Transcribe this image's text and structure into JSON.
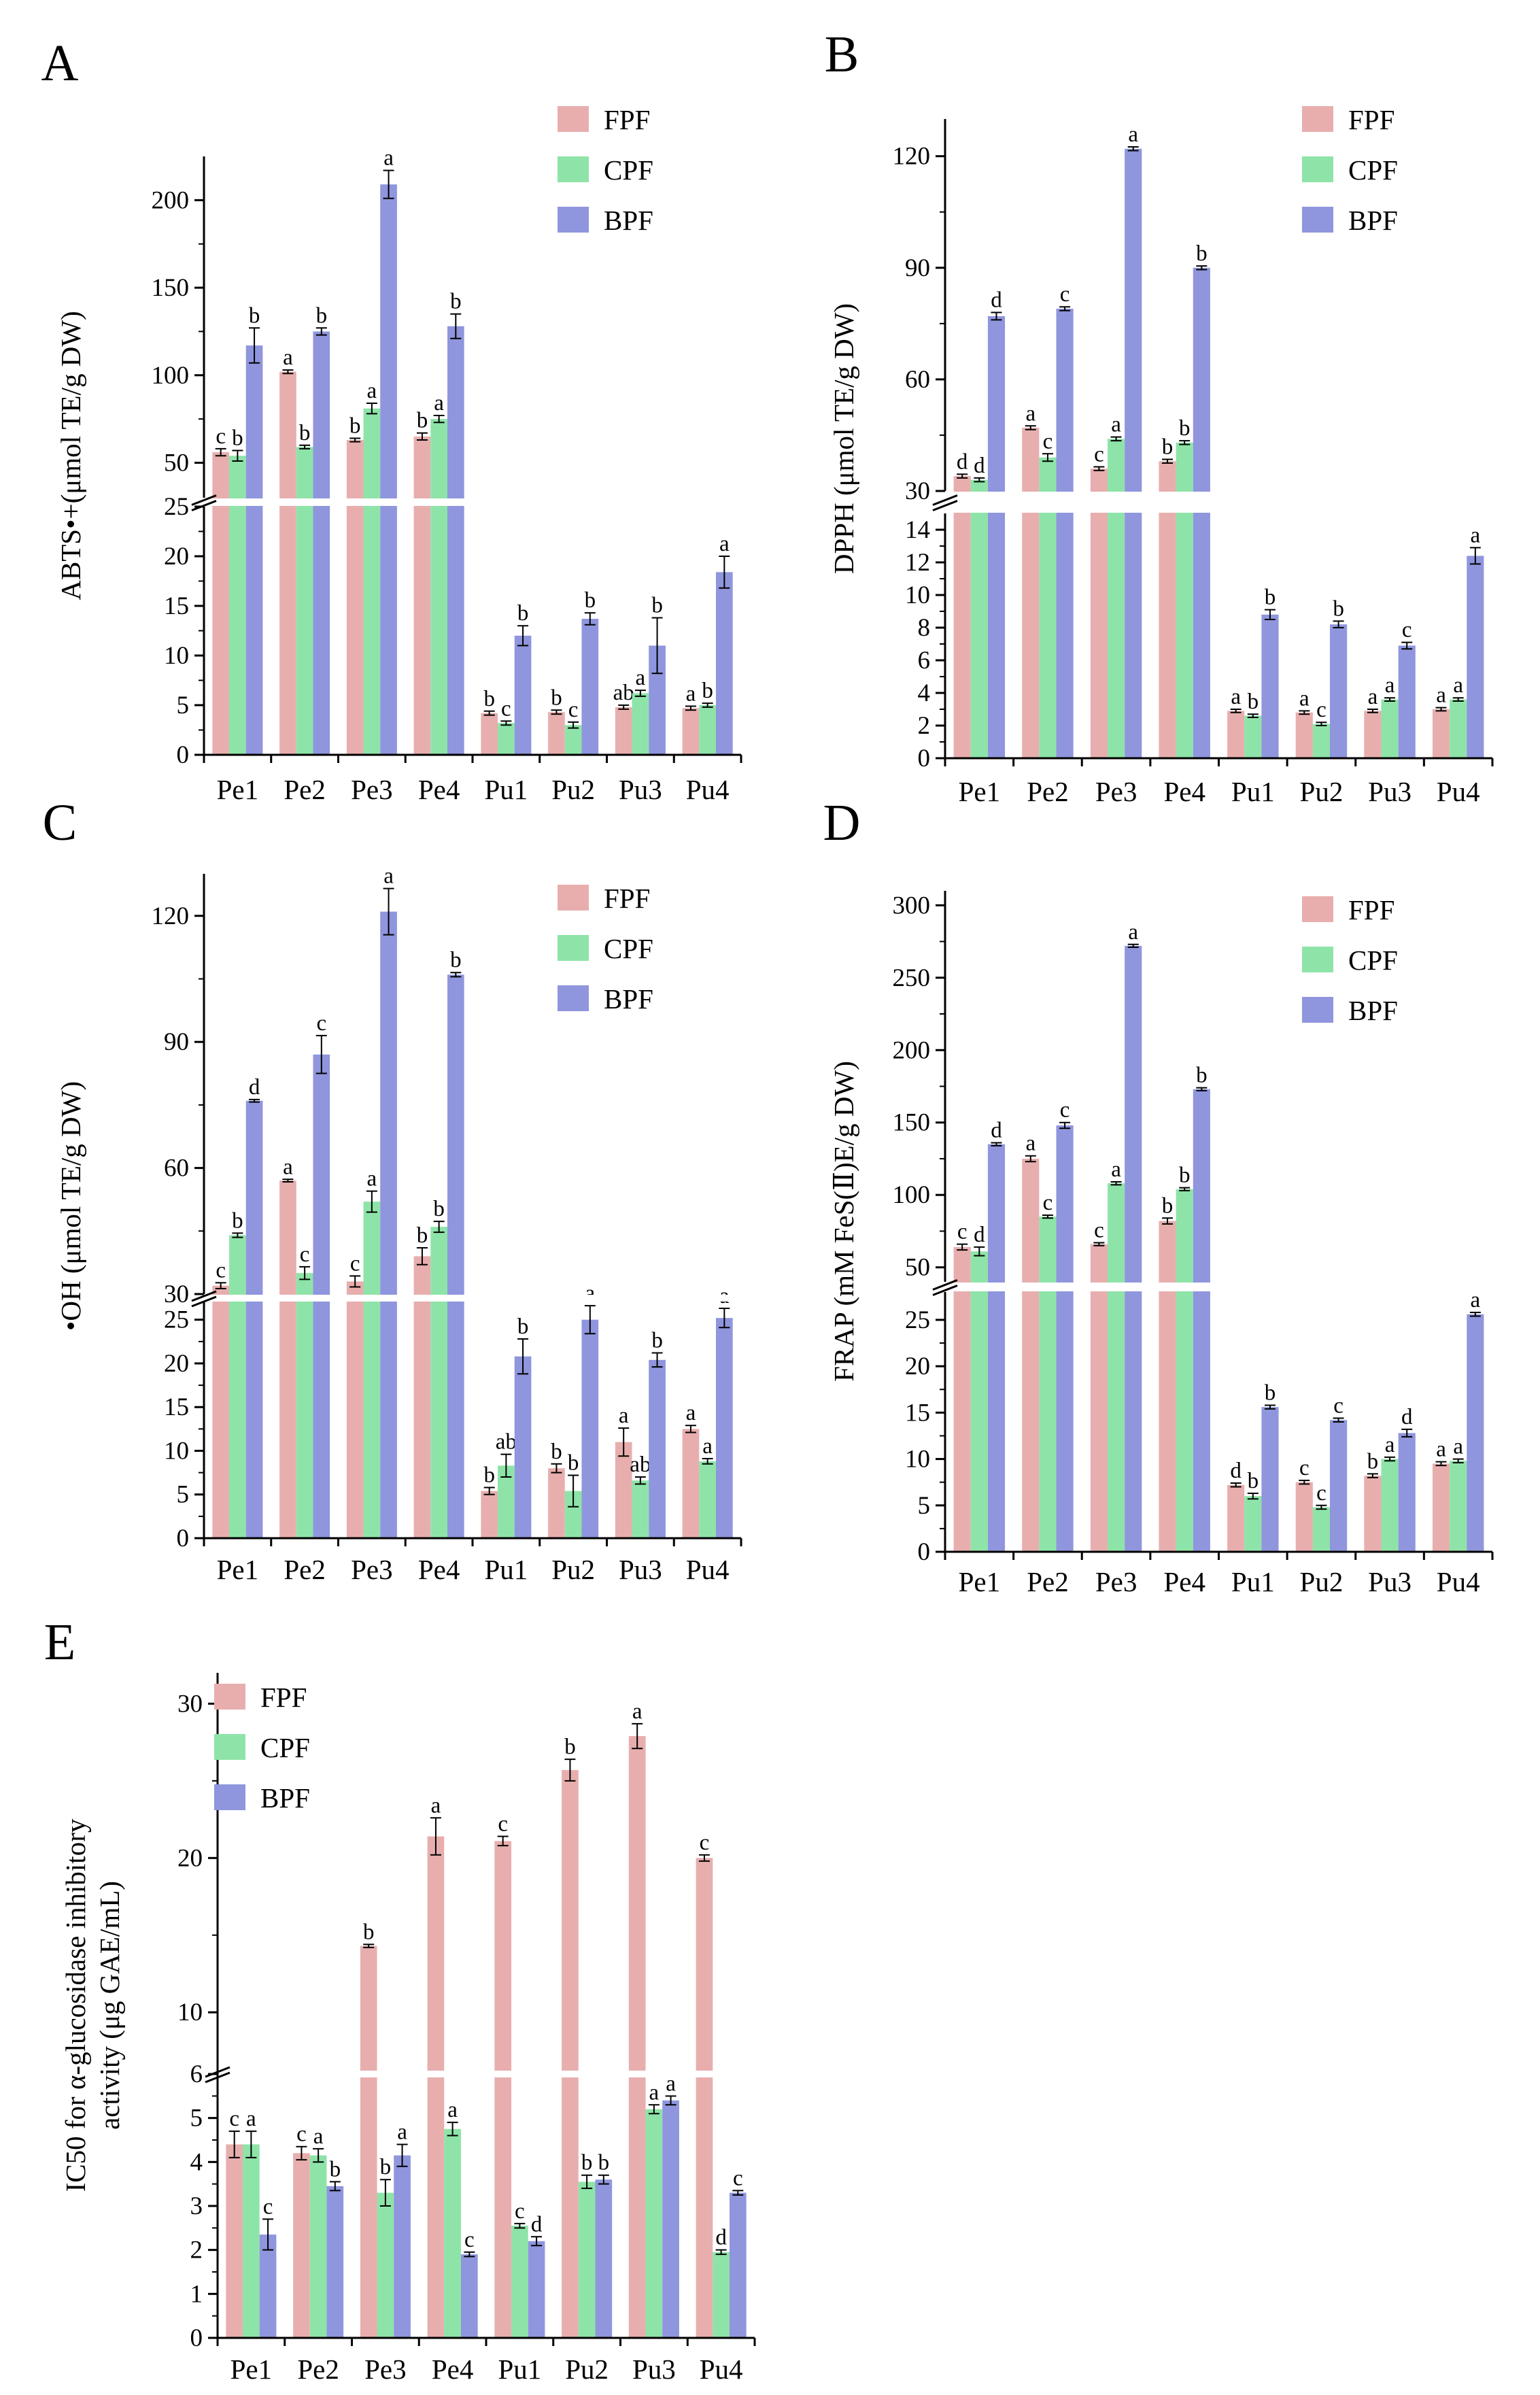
{
  "colors": {
    "FPF": "#e8aeae",
    "CPF": "#8ee4a8",
    "BPF": "#8f96dd"
  },
  "series_names": [
    "FPF",
    "CPF",
    "BPF"
  ],
  "chart_data": [
    {
      "panel": "A",
      "type": "bar",
      "ylabel": "ABTS•+(μmol TE/g DW)",
      "categories": [
        "Pe1",
        "Pe2",
        "Pe3",
        "Pe4",
        "Pu1",
        "Pu2",
        "Pu3",
        "Pu4"
      ],
      "axis_break": {
        "low": [
          0,
          25
        ],
        "high": [
          30,
          225
        ]
      },
      "low_ticks": [
        0,
        5,
        10,
        15,
        20,
        25
      ],
      "high_ticks": [
        50,
        100,
        150,
        200
      ],
      "legend": [
        "FPF",
        "CPF",
        "BPF"
      ],
      "series": [
        {
          "name": "FPF",
          "values": [
            56,
            102,
            63,
            65,
            4.2,
            4.3,
            4.8,
            4.7
          ],
          "err": [
            2,
            1,
            1,
            2,
            0.2,
            0.2,
            0.2,
            0.2
          ],
          "sig": [
            "c",
            "a",
            "b",
            "b",
            "b",
            "b",
            "ab",
            "a"
          ]
        },
        {
          "name": "CPF",
          "values": [
            54,
            59,
            81,
            75,
            3.2,
            3.0,
            6.2,
            5.0
          ],
          "err": [
            3,
            1,
            3,
            2,
            0.2,
            0.3,
            0.3,
            0.2
          ],
          "sig": [
            "b",
            "b",
            "a",
            "a",
            "c",
            "c",
            "a",
            "b"
          ]
        },
        {
          "name": "BPF",
          "values": [
            117,
            125,
            209,
            128,
            12.0,
            13.7,
            11.0,
            18.4
          ],
          "err": [
            10,
            2,
            8,
            7,
            1.0,
            0.6,
            2.8,
            1.6
          ],
          "sig": [
            "b",
            "b",
            "a",
            "b",
            "b",
            "b",
            "b",
            "a"
          ]
        }
      ]
    },
    {
      "panel": "B",
      "type": "bar",
      "ylabel": "DPPH (μmol TE/g DW)",
      "categories": [
        "Pe1",
        "Pe2",
        "Pe3",
        "Pe4",
        "Pu1",
        "Pu2",
        "Pu3",
        "Pu4"
      ],
      "axis_break": {
        "low": [
          0,
          15
        ],
        "high": [
          30,
          130
        ]
      },
      "low_ticks": [
        0,
        2,
        4,
        6,
        8,
        10,
        12,
        14
      ],
      "high_ticks": [
        30,
        60,
        90,
        120
      ],
      "legend": [
        "FPF",
        "CPF",
        "BPF"
      ],
      "series": [
        {
          "name": "FPF",
          "values": [
            34,
            47,
            36,
            38,
            2.9,
            2.8,
            2.9,
            3.0
          ],
          "err": [
            0.5,
            0.5,
            0.5,
            0.5,
            0.1,
            0.1,
            0.1,
            0.1
          ],
          "sig": [
            "d",
            "a",
            "c",
            "b",
            "a",
            "a",
            "a",
            "a"
          ]
        },
        {
          "name": "CPF",
          "values": [
            33,
            39,
            44,
            43,
            2.6,
            2.1,
            3.6,
            3.6
          ],
          "err": [
            0.5,
            1,
            0.5,
            0.5,
            0.1,
            0.1,
            0.1,
            0.1
          ],
          "sig": [
            "d",
            "c",
            "a",
            "b",
            "b",
            "c",
            "a",
            "a"
          ]
        },
        {
          "name": "BPF",
          "values": [
            77,
            79,
            122,
            90,
            8.8,
            8.2,
            6.9,
            12.4
          ],
          "err": [
            1,
            0.5,
            0.5,
            0.5,
            0.3,
            0.2,
            0.2,
            0.5
          ],
          "sig": [
            "d",
            "c",
            "a",
            "b",
            "b",
            "b",
            "c",
            "a"
          ]
        }
      ]
    },
    {
      "panel": "C",
      "type": "bar",
      "ylabel": "•OH (μmol TE/g DW)",
      "categories": [
        "Pe1",
        "Pe2",
        "Pe3",
        "Pe4",
        "Pu1",
        "Pu2",
        "Pu3",
        "Pu4"
      ],
      "axis_break": {
        "low": [
          0,
          27
        ],
        "high": [
          30,
          130
        ]
      },
      "low_ticks": [
        0,
        5,
        10,
        15,
        20,
        25
      ],
      "high_ticks": [
        30,
        60,
        90,
        120
      ],
      "legend": [
        "FPF",
        "CPF",
        "BPF"
      ],
      "series": [
        {
          "name": "FPF",
          "values": [
            32,
            57,
            33,
            39,
            5.4,
            8.0,
            11.0,
            12.5
          ],
          "err": [
            0.7,
            0.3,
            1.3,
            2,
            0.4,
            0.5,
            1.6,
            0.4
          ],
          "sig": [
            "c",
            "a",
            "c",
            "b",
            "b",
            "b",
            "a",
            "a"
          ]
        },
        {
          "name": "CPF",
          "values": [
            44,
            35,
            52,
            46,
            8.3,
            5.4,
            6.6,
            8.8
          ],
          "err": [
            0.5,
            1.5,
            2.5,
            1.3,
            1.3,
            1.8,
            0.4,
            0.3
          ],
          "sig": [
            "b",
            "c",
            "a",
            "b",
            "ab",
            "b",
            "ab",
            "a"
          ]
        },
        {
          "name": "BPF",
          "values": [
            76,
            87,
            121,
            106,
            20.8,
            25.0,
            20.4,
            25.2
          ],
          "err": [
            0.3,
            4.5,
            5.5,
            0.5,
            2.0,
            1.6,
            0.8,
            1.1
          ],
          "sig": [
            "d",
            "c",
            "a",
            "b",
            "b",
            "a",
            "b",
            "a"
          ]
        }
      ]
    },
    {
      "panel": "D",
      "type": "bar",
      "ylabel": "FRAP (mM FeS(Ⅱ)E/g DW)",
      "categories": [
        "Pe1",
        "Pe2",
        "Pe3",
        "Pe4",
        "Pu1",
        "Pu2",
        "Pu3",
        "Pu4"
      ],
      "axis_break": {
        "low": [
          0,
          28
        ],
        "high": [
          40,
          310
        ]
      },
      "low_ticks": [
        0,
        5,
        10,
        15,
        20,
        25
      ],
      "high_ticks": [
        50,
        100,
        150,
        200,
        250,
        300
      ],
      "legend": [
        "FPF",
        "CPF",
        "BPF"
      ],
      "series": [
        {
          "name": "FPF",
          "values": [
            64,
            125,
            66,
            82,
            7.2,
            7.5,
            8.2,
            9.5
          ],
          "err": [
            2,
            2,
            1,
            2,
            0.2,
            0.2,
            0.2,
            0.2
          ],
          "sig": [
            "c",
            "a",
            "c",
            "b",
            "d",
            "c",
            "b",
            "a"
          ]
        },
        {
          "name": "CPF",
          "values": [
            61,
            85,
            108,
            104,
            6.0,
            4.8,
            10.0,
            9.8
          ],
          "err": [
            3,
            1,
            1,
            1,
            0.3,
            0.2,
            0.2,
            0.2
          ],
          "sig": [
            "d",
            "c",
            "a",
            "b",
            "b",
            "c",
            "a",
            "a"
          ]
        },
        {
          "name": "BPF",
          "values": [
            135,
            148,
            272,
            173,
            15.6,
            14.2,
            12.8,
            25.6
          ],
          "err": [
            1,
            2,
            1,
            1,
            0.2,
            0.2,
            0.4,
            0.2
          ],
          "sig": [
            "d",
            "c",
            "a",
            "b",
            "b",
            "c",
            "d",
            "a"
          ]
        }
      ]
    },
    {
      "panel": "E",
      "type": "bar",
      "ylabel_line1": "IC50 for α-glucosidase inhibitory",
      "ylabel_line2": "activity (μg GAE/mL)",
      "categories": [
        "Pe1",
        "Pe2",
        "Pe3",
        "Pe4",
        "Pu1",
        "Pu2",
        "Pu3",
        "Pu4"
      ],
      "axis_break": {
        "low": [
          0,
          6
        ],
        "high": [
          6,
          32
        ]
      },
      "low_ticks": [
        0,
        1,
        2,
        3,
        4,
        5,
        6
      ],
      "high_ticks": [
        10,
        20,
        30
      ],
      "legend": [
        "FPF",
        "CPF",
        "BPF"
      ],
      "series": [
        {
          "name": "FPF",
          "values": [
            4.4,
            4.2,
            14.3,
            21.4,
            21.1,
            25.7,
            27.9,
            20.0
          ],
          "err": [
            0.3,
            0.15,
            0.1,
            1.2,
            0.3,
            0.7,
            0.8,
            0.2
          ],
          "sig": [
            "c",
            "c",
            "b",
            "a",
            "c",
            "b",
            "a",
            "c"
          ]
        },
        {
          "name": "CPF",
          "values": [
            4.4,
            4.15,
            3.3,
            4.75,
            2.55,
            3.55,
            5.2,
            1.95
          ],
          "err": [
            0.3,
            0.15,
            0.3,
            0.15,
            0.05,
            0.15,
            0.1,
            0.05
          ],
          "sig": [
            "a",
            "a",
            "b",
            "a",
            "c",
            "b",
            "a",
            "d"
          ]
        },
        {
          "name": "BPF",
          "values": [
            2.35,
            3.45,
            4.15,
            1.9,
            2.2,
            3.6,
            5.4,
            3.3
          ],
          "err": [
            0.35,
            0.1,
            0.25,
            0.05,
            0.1,
            0.1,
            0.1,
            0.05
          ],
          "sig": [
            "c",
            "b",
            "a",
            "c",
            "d",
            "b",
            "a",
            "c"
          ]
        }
      ]
    }
  ]
}
